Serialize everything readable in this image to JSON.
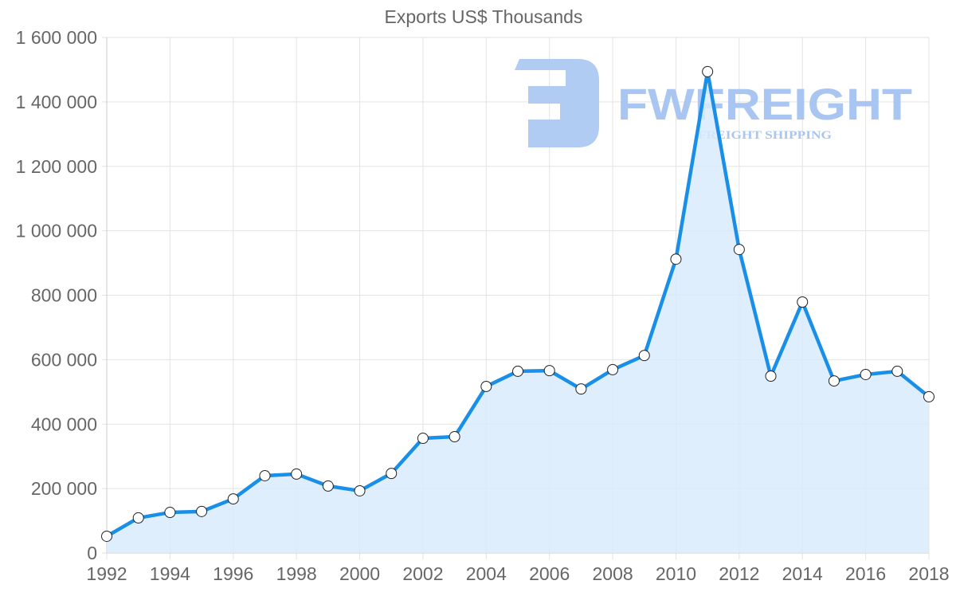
{
  "title": "Exports US$ Thousands",
  "watermark": {
    "brand": "FWFREIGHT",
    "tagline": "FREIGHT SHIPPING",
    "color": "#a9c6f2"
  },
  "colors": {
    "line": "#1a8fe8",
    "fill": "#d8ebfc",
    "grid": "#e3e3e3",
    "axis": "#cccccc",
    "tick_text": "#666666",
    "point_fill": "#ffffff",
    "point_stroke": "#222222"
  },
  "chart_data": {
    "type": "area",
    "title": "Exports US$ Thousands",
    "xlabel": "",
    "ylabel": "",
    "x": [
      1992,
      1993,
      1994,
      1995,
      1996,
      1997,
      1998,
      1999,
      2000,
      2001,
      2002,
      2003,
      2004,
      2005,
      2006,
      2007,
      2008,
      2009,
      2010,
      2011,
      2012,
      2013,
      2014,
      2015,
      2016,
      2017,
      2018
    ],
    "series": [
      {
        "name": "Exports US$ Thousands",
        "values": [
          52000,
          109000,
          126000,
          129000,
          168000,
          240000,
          245000,
          208000,
          193000,
          247000,
          356000,
          361000,
          517000,
          564000,
          566000,
          509000,
          569000,
          613000,
          912000,
          1494000,
          942000,
          549000,
          779000,
          534000,
          554000,
          564000,
          485000
        ]
      }
    ],
    "ylim": [
      0,
      1600000
    ],
    "xlim": [
      1992,
      2018
    ],
    "yticks": [
      0,
      200000,
      400000,
      600000,
      800000,
      1000000,
      1200000,
      1400000,
      1600000
    ],
    "ytick_labels": [
      "0",
      "200 000",
      "400 000",
      "600 000",
      "800 000",
      "1 000 000",
      "1 200 000",
      "1 400 000",
      "1 600 000"
    ],
    "xticks": [
      1992,
      1994,
      1996,
      1998,
      2000,
      2002,
      2004,
      2006,
      2008,
      2010,
      2012,
      2014,
      2016,
      2018
    ],
    "xtick_labels": [
      "1992",
      "1994",
      "1996",
      "1998",
      "2000",
      "2002",
      "2004",
      "2006",
      "2008",
      "2010",
      "2012",
      "2014",
      "2016",
      "2018"
    ],
    "grid": true,
    "legend": "none"
  }
}
